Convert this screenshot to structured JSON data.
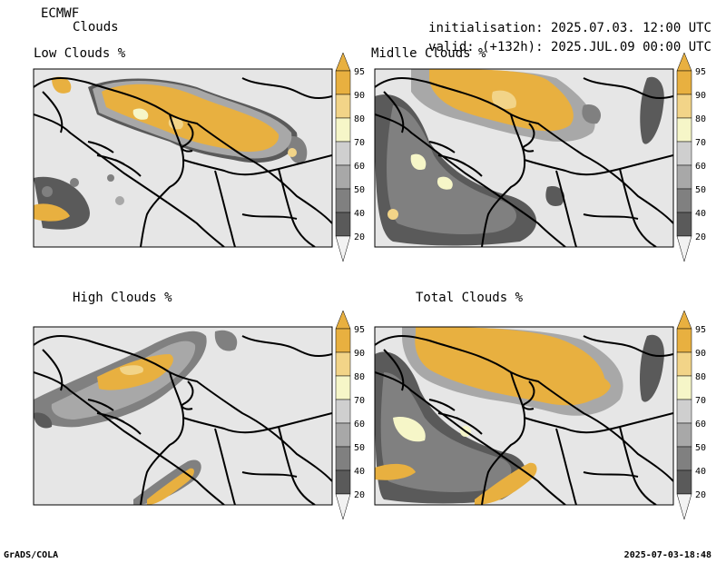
{
  "header": {
    "model": "ECMWF",
    "product": "Clouds",
    "init_label": "initialisation:",
    "init_value": "2025.07.03. 12:00 UTC",
    "valid_label": "valid: (+132h):",
    "valid_value": "2025.JUL.09 00:00 UTC"
  },
  "panels": [
    {
      "id": "low",
      "title": "Low Clouds %"
    },
    {
      "id": "middle",
      "title": "Midlle Clouds %"
    },
    {
      "id": "high",
      "title": "High Clouds %"
    },
    {
      "id": "total",
      "title": "Total Clouds %"
    }
  ],
  "colorbar": {
    "levels": [
      20,
      40,
      50,
      60,
      70,
      80,
      90,
      95
    ],
    "labels": [
      "95",
      "90",
      "80",
      "70",
      "60",
      "50",
      "40",
      "20"
    ],
    "colors": {
      "below20": "#f2f2f2",
      "20-40": "#5a5a5a",
      "40-50": "#808080",
      "50-60": "#a8a8a8",
      "60-70": "#cfcfcf",
      "70-80": "#f6f6c8",
      "80-90": "#f2d488",
      "90-95": "#e8b040",
      "above95": "#e8b040"
    }
  },
  "colors": {
    "background_map": "#e6e6e6",
    "border_line": "#000000",
    "dark_grey": "#5a5a5a",
    "mid_grey": "#8a8a8a",
    "light_grey": "#b4b4b4",
    "pale_yellow": "#f6f6c8",
    "light_orange": "#f2d488",
    "orange": "#e8b040"
  },
  "footer": {
    "left": "GrADS/COLA",
    "right": "2025-07-03-18:48"
  }
}
